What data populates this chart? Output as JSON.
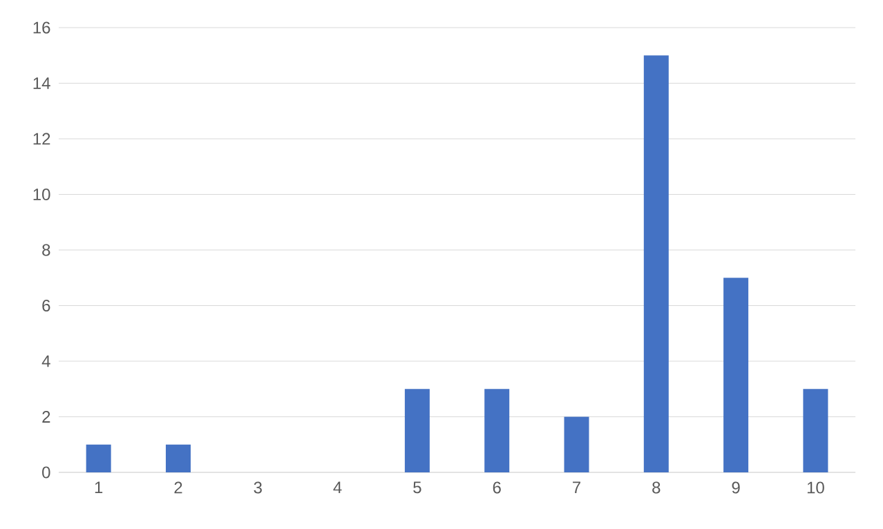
{
  "chart_data": {
    "type": "bar",
    "categories": [
      "1",
      "2",
      "3",
      "4",
      "5",
      "6",
      "7",
      "8",
      "9",
      "10"
    ],
    "values": [
      1,
      1,
      0,
      0,
      3,
      3,
      2,
      15,
      7,
      3
    ],
    "color": "#4472c4",
    "ylim": [
      0,
      16
    ],
    "yticks": [
      0,
      2,
      4,
      6,
      8,
      10,
      12,
      14,
      16
    ],
    "grid": "y"
  }
}
